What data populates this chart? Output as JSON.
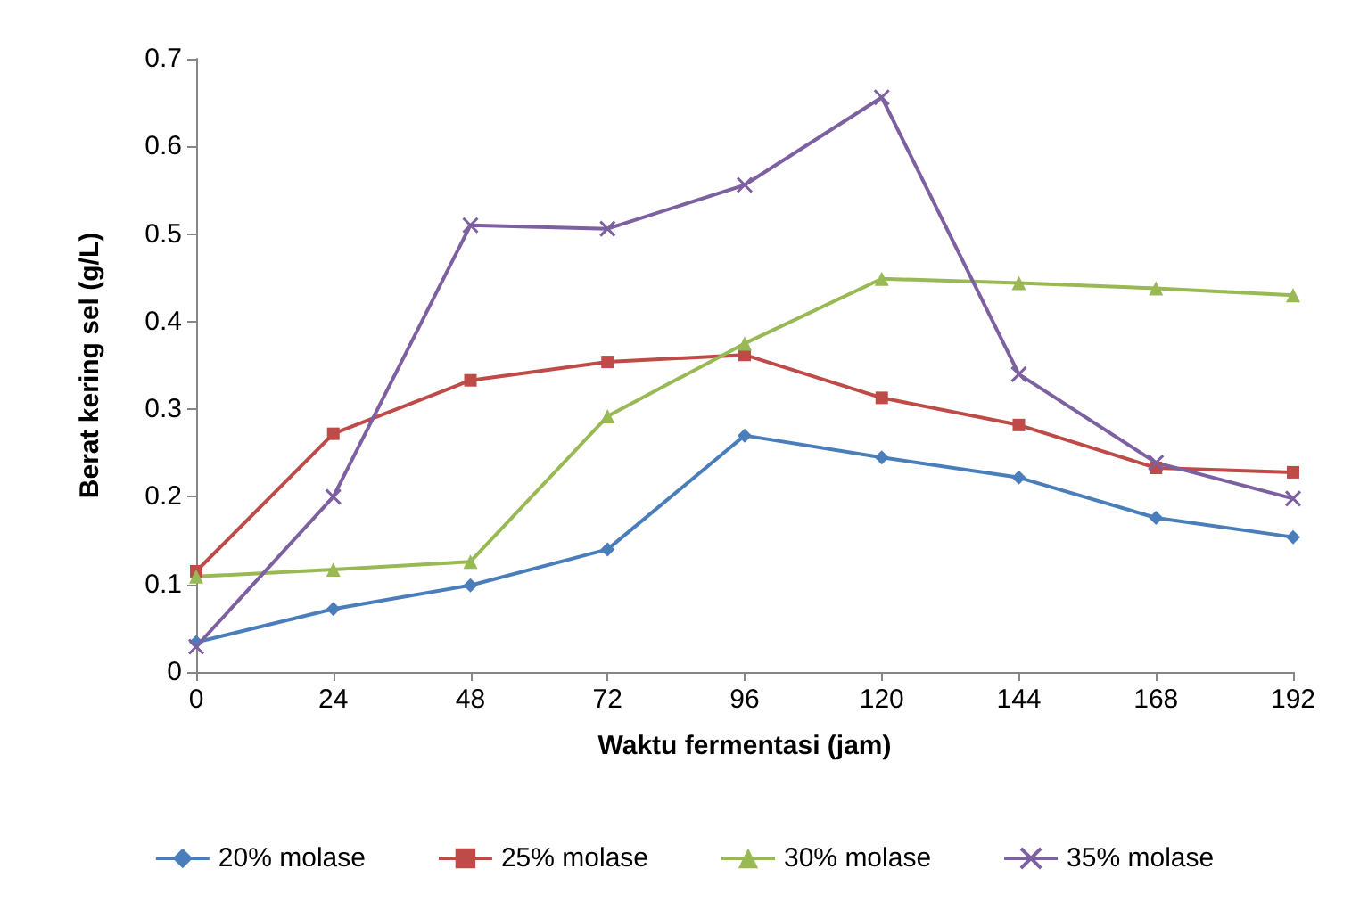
{
  "chart_data": {
    "type": "line",
    "xlabel": "Waktu fermentasi (jam)",
    "ylabel": "Berat kering sel (g/L)",
    "x": [
      0,
      24,
      48,
      72,
      96,
      120,
      144,
      168,
      192
    ],
    "xlim": [
      0,
      192
    ],
    "xticks": [
      0,
      24,
      48,
      72,
      96,
      120,
      144,
      168,
      192
    ],
    "ylim": [
      0,
      0.7
    ],
    "yticks": [
      0,
      0.1,
      0.2,
      0.3,
      0.4,
      0.5,
      0.6,
      0.7
    ],
    "grid": false,
    "legend": "bottom",
    "line_style": "solid",
    "series": [
      {
        "name": "20% molase",
        "color": "#4a7ebb",
        "marker": "diamond",
        "values": [
          0.034,
          0.072,
          0.099,
          0.14,
          0.27,
          0.245,
          0.222,
          0.176,
          0.154
        ]
      },
      {
        "name": "25% molase",
        "color": "#be4b48",
        "marker": "square",
        "values": [
          0.115,
          0.272,
          0.333,
          0.354,
          0.362,
          0.313,
          0.282,
          0.233,
          0.228
        ]
      },
      {
        "name": "30% molase",
        "color": "#98b954",
        "marker": "triangle",
        "values": [
          0.109,
          0.117,
          0.126,
          0.292,
          0.375,
          0.449,
          0.444,
          0.438,
          0.43
        ]
      },
      {
        "name": "35% molase",
        "color": "#7d60a0",
        "marker": "cross",
        "values": [
          0.029,
          0.2,
          0.51,
          0.506,
          0.556,
          0.656,
          0.34,
          0.239,
          0.198
        ]
      }
    ]
  }
}
